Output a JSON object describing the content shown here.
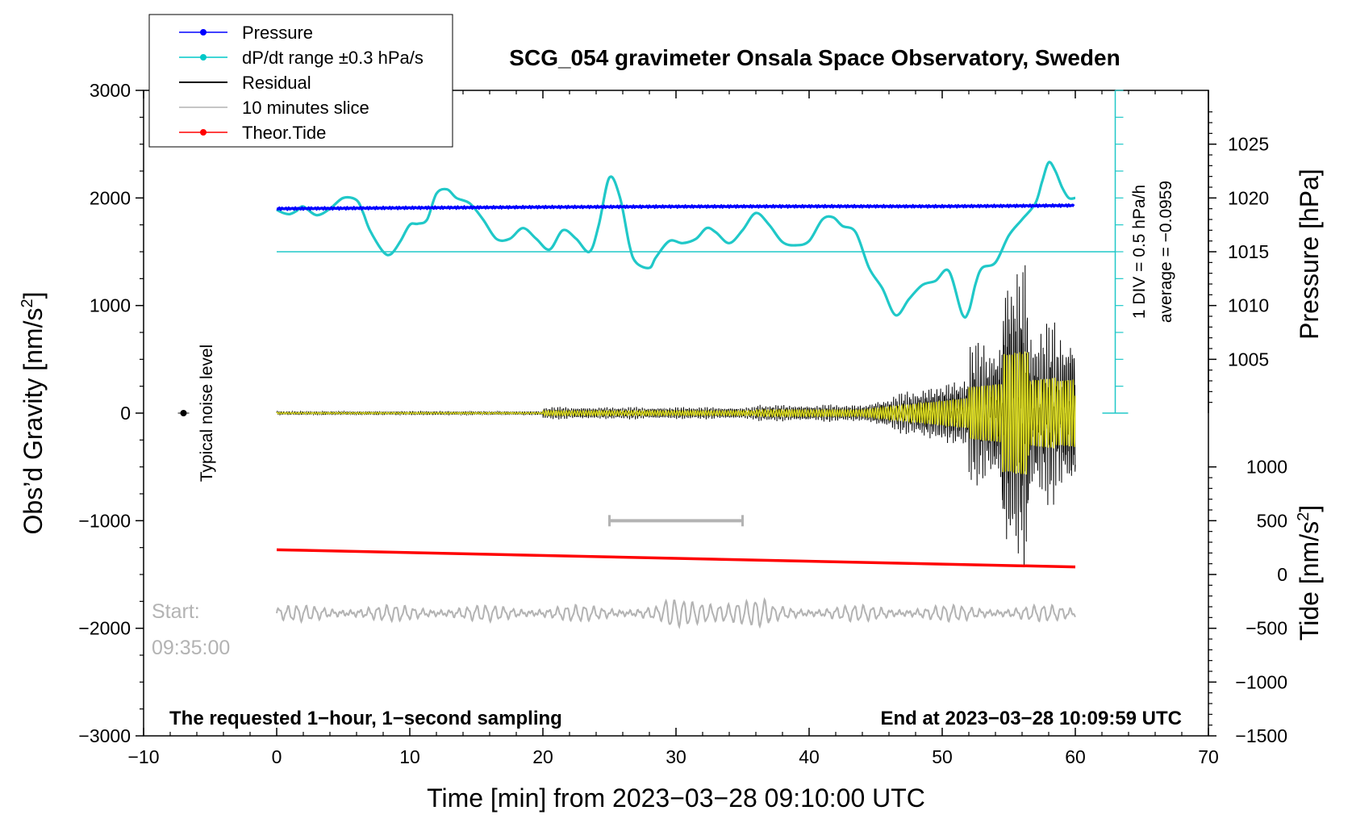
{
  "chart_data": {
    "type": "line",
    "title": "SCG_054 gravimeter Onsala Space Observatory, Sweden",
    "xlabel": "Time [min] from 2023−03−28 09:10:00 UTC",
    "ylabel_left": "Obs’d Gravity [nm/s",
    "ylabel_left_sup": "2",
    "ylabel_left_end": "]",
    "ylabel_right_pressure": "Pressure [hPa]",
    "ylabel_right_tide": "Tide [nm/s",
    "ylabel_right_tide_sup": "2",
    "ylabel_right_tide_end": "]",
    "xlim": [
      -10,
      70
    ],
    "ylim": [
      -3000,
      3000
    ],
    "x_ticks": [
      -10,
      0,
      10,
      20,
      30,
      40,
      50,
      60,
      70
    ],
    "x_tick_labels": [
      "−10",
      "0",
      "10",
      "20",
      "30",
      "40",
      "50",
      "60",
      "70"
    ],
    "y_ticks": [
      3000,
      2000,
      1000,
      0,
      -1000,
      -2000,
      -3000
    ],
    "y_tick_labels": [
      "3000",
      "2000",
      "1000",
      "0",
      "−1000",
      "−2000",
      "−3000"
    ],
    "pressure_ticks": [
      1025,
      1020,
      1015,
      1010,
      1005
    ],
    "pressure_tick_labels": [
      "1025",
      "1020",
      "1015",
      "1010",
      "1005"
    ],
    "pressure_gravity_map": {
      "p1": 1020,
      "g1": 2000,
      "p2": 1010,
      "g2": 1000
    },
    "tide_ticks": [
      1000,
      500,
      0,
      -500,
      -1000,
      -1500
    ],
    "tide_tick_labels": [
      "1000",
      "500",
      "0",
      "−500",
      "−1000",
      "−1500"
    ],
    "tide_gravity_map": {
      "t1": 0,
      "g1": -1500,
      "t2": 1000,
      "g2": -500
    },
    "legend": [
      {
        "label": "Pressure",
        "color": "#0000ff",
        "marker": true
      },
      {
        "label": "dP/dt range ±0.3 hPa/s",
        "color": "#00c8c8",
        "marker": true
      },
      {
        "label": "Residual",
        "color": "#000000",
        "marker": false
      },
      {
        "label": "10 minutes slice",
        "color": "#b3b3b3",
        "marker": false
      },
      {
        "label": "Theor.Tide",
        "color": "#ff0000",
        "marker": true
      }
    ],
    "series": [
      {
        "name": "Pressure",
        "color": "#0000ff",
        "x": [
          0,
          10,
          20,
          30,
          40,
          50,
          60
        ],
        "y": [
          1900,
          1908,
          1915,
          1920,
          1922,
          1922,
          1930
        ]
      },
      {
        "name": "dP/dt",
        "color": "#20c8c8",
        "x": [
          0,
          0.5,
          1,
          1.5,
          2,
          3,
          4,
          5,
          6,
          6.5,
          7,
          8,
          8.6,
          9.3,
          10,
          10.6,
          11.3,
          12,
          12.8,
          13.5,
          14.5,
          15.5,
          16.5,
          17.5,
          18.5,
          19.5,
          20.5,
          21.5,
          22.5,
          23.5,
          24.2,
          25,
          25.8,
          26.5,
          27,
          28,
          28.5,
          29.5,
          30.5,
          31.5,
          32.3,
          33,
          34,
          35,
          36,
          37,
          38,
          39,
          40,
          41,
          41.8,
          42.5,
          43.5,
          44.5,
          45.5,
          46.5,
          47.5,
          48.5,
          49.5,
          50.5,
          51.5,
          52,
          52.5,
          53,
          54,
          55,
          56,
          57,
          57.5,
          58,
          58.5,
          59,
          59.5,
          60
        ],
        "y": [
          1890,
          1860,
          1850,
          1880,
          1920,
          1840,
          1900,
          2000,
          1980,
          1860,
          1700,
          1500,
          1480,
          1600,
          1750,
          1760,
          1800,
          2040,
          2080,
          2000,
          1950,
          1800,
          1620,
          1620,
          1720,
          1620,
          1520,
          1700,
          1620,
          1500,
          1750,
          2190,
          2000,
          1560,
          1400,
          1350,
          1450,
          1600,
          1580,
          1620,
          1720,
          1680,
          1580,
          1700,
          1860,
          1750,
          1590,
          1560,
          1600,
          1800,
          1820,
          1740,
          1680,
          1350,
          1160,
          910,
          1060,
          1190,
          1230,
          1320,
          920,
          950,
          1200,
          1350,
          1400,
          1650,
          1800,
          1950,
          2150,
          2330,
          2250,
          2100,
          2000,
          2000
        ]
      },
      {
        "name": "Theor.Tide",
        "color": "#ff0000",
        "x": [
          0,
          60
        ],
        "y": [
          -1270,
          -1430
        ]
      }
    ],
    "dpdt_reference_line": 1500,
    "dpdt_scale_bar": {
      "x": 63,
      "y_bottom": 0,
      "y_top": 3000,
      "step": 250
    },
    "noise_marker": {
      "x": -7,
      "y": 0
    },
    "slice_bar": {
      "x_start": 25,
      "x_end": 35,
      "y": -1000
    }
  },
  "legend_box_title": "",
  "annotations": {
    "typical_noise": "Typical noise level",
    "start_label": "Start:",
    "start_time": "09:35:00",
    "note_left": "The requested 1−hour, 1−second sampling",
    "note_right": "End at 2023−03−28 10:09:59 UTC",
    "div_line1": "1 DIV = 0.5 hPa/h",
    "div_line2": "average = −0.0959"
  }
}
